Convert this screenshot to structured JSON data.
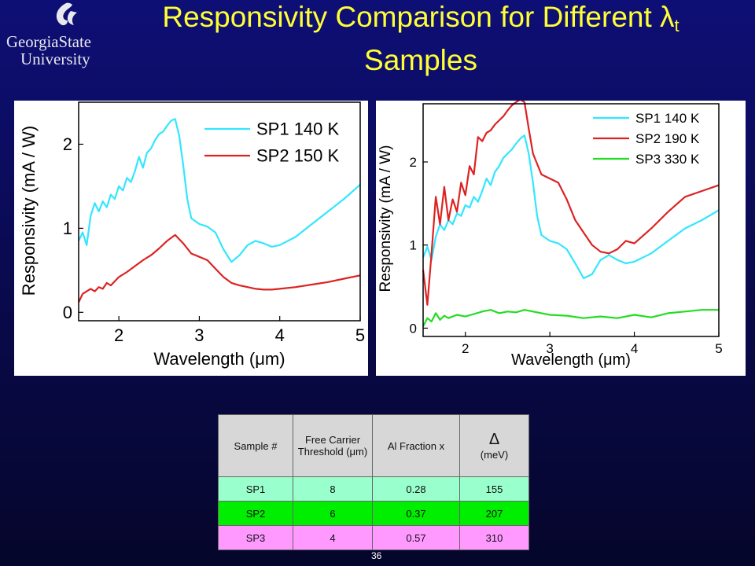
{
  "slide": {
    "title_main": "Responsivity Comparison for Different λ",
    "title_sub": "t",
    "title_line2": "Samples",
    "logo_line1": "GeorgiaState",
    "logo_line2": "University",
    "page_number": "36"
  },
  "chart_data": [
    {
      "type": "line",
      "xlabel": "Wavelength (μm)",
      "ylabel": "Responsivity (mA / W)",
      "xlim": [
        1.5,
        5.0
      ],
      "ylim": [
        -0.1,
        2.5
      ],
      "xticks": [
        2,
        3,
        4,
        5
      ],
      "yticks": [
        0,
        1,
        2
      ],
      "legend_position": "top-right",
      "series": [
        {
          "name": "SP1 140 K",
          "color": "#33e6ff",
          "x": [
            1.5,
            1.55,
            1.6,
            1.65,
            1.7,
            1.75,
            1.8,
            1.85,
            1.9,
            1.95,
            2.0,
            2.05,
            2.1,
            2.15,
            2.2,
            2.25,
            2.3,
            2.35,
            2.4,
            2.45,
            2.5,
            2.55,
            2.6,
            2.65,
            2.7,
            2.75,
            2.8,
            2.85,
            2.9,
            3.0,
            3.1,
            3.2,
            3.3,
            3.4,
            3.5,
            3.6,
            3.7,
            3.8,
            3.9,
            4.0,
            4.2,
            4.4,
            4.6,
            4.8,
            5.0
          ],
          "y": [
            0.85,
            0.95,
            0.8,
            1.15,
            1.3,
            1.2,
            1.32,
            1.25,
            1.4,
            1.35,
            1.5,
            1.45,
            1.6,
            1.55,
            1.68,
            1.85,
            1.72,
            1.9,
            1.95,
            2.05,
            2.12,
            2.15,
            2.22,
            2.28,
            2.3,
            2.1,
            1.75,
            1.35,
            1.12,
            1.05,
            1.02,
            0.95,
            0.75,
            0.6,
            0.68,
            0.8,
            0.85,
            0.82,
            0.78,
            0.8,
            0.9,
            1.05,
            1.2,
            1.35,
            1.52
          ]
        },
        {
          "name": "SP2 150 K",
          "color": "#dd2222",
          "x": [
            1.5,
            1.55,
            1.6,
            1.65,
            1.7,
            1.75,
            1.8,
            1.85,
            1.9,
            2.0,
            2.1,
            2.2,
            2.3,
            2.4,
            2.5,
            2.6,
            2.7,
            2.8,
            2.9,
            3.0,
            3.1,
            3.2,
            3.3,
            3.4,
            3.5,
            3.6,
            3.7,
            3.8,
            3.9,
            4.0,
            4.2,
            4.4,
            4.6,
            4.8,
            5.0
          ],
          "y": [
            0.12,
            0.22,
            0.25,
            0.28,
            0.25,
            0.3,
            0.28,
            0.35,
            0.32,
            0.42,
            0.48,
            0.55,
            0.62,
            0.68,
            0.76,
            0.85,
            0.92,
            0.82,
            0.7,
            0.66,
            0.62,
            0.52,
            0.42,
            0.35,
            0.32,
            0.3,
            0.28,
            0.27,
            0.27,
            0.28,
            0.3,
            0.33,
            0.36,
            0.4,
            0.44
          ]
        }
      ]
    },
    {
      "type": "line",
      "xlabel": "Wavelength (μm)",
      "ylabel": "Responsivity (mA / W)",
      "xlim": [
        1.5,
        5.0
      ],
      "ylim": [
        -0.1,
        2.7
      ],
      "xticks": [
        2,
        3,
        4,
        5
      ],
      "yticks": [
        0,
        1,
        2
      ],
      "legend_position": "top-right",
      "series": [
        {
          "name": "SP1 140 K",
          "color": "#33e6ff",
          "x": [
            1.5,
            1.55,
            1.6,
            1.65,
            1.7,
            1.75,
            1.8,
            1.85,
            1.9,
            1.95,
            2.0,
            2.05,
            2.1,
            2.15,
            2.2,
            2.25,
            2.3,
            2.35,
            2.4,
            2.45,
            2.5,
            2.55,
            2.6,
            2.65,
            2.7,
            2.75,
            2.8,
            2.85,
            2.9,
            3.0,
            3.1,
            3.2,
            3.3,
            3.4,
            3.5,
            3.6,
            3.7,
            3.8,
            3.9,
            4.0,
            4.2,
            4.4,
            4.6,
            4.8,
            5.0
          ],
          "y": [
            0.85,
            0.98,
            0.82,
            1.1,
            1.25,
            1.18,
            1.3,
            1.25,
            1.38,
            1.35,
            1.48,
            1.45,
            1.58,
            1.52,
            1.65,
            1.8,
            1.72,
            1.88,
            1.95,
            2.05,
            2.1,
            2.15,
            2.22,
            2.28,
            2.32,
            2.1,
            1.75,
            1.35,
            1.12,
            1.05,
            1.02,
            0.95,
            0.78,
            0.6,
            0.65,
            0.82,
            0.88,
            0.82,
            0.78,
            0.8,
            0.9,
            1.05,
            1.2,
            1.3,
            1.42
          ]
        },
        {
          "name": "SP2 190 K",
          "color": "#dd2222",
          "x": [
            1.5,
            1.55,
            1.6,
            1.65,
            1.7,
            1.75,
            1.8,
            1.85,
            1.9,
            1.95,
            2.0,
            2.05,
            2.1,
            2.15,
            2.2,
            2.25,
            2.3,
            2.35,
            2.4,
            2.45,
            2.5,
            2.55,
            2.6,
            2.65,
            2.7,
            2.75,
            2.8,
            2.9,
            3.0,
            3.1,
            3.2,
            3.3,
            3.4,
            3.5,
            3.6,
            3.7,
            3.8,
            3.9,
            4.0,
            4.2,
            4.4,
            4.6,
            4.8,
            5.0
          ],
          "y": [
            0.7,
            0.28,
            0.9,
            1.58,
            1.25,
            1.7,
            1.3,
            1.55,
            1.4,
            1.75,
            1.6,
            1.95,
            1.85,
            2.3,
            2.25,
            2.35,
            2.38,
            2.45,
            2.5,
            2.55,
            2.62,
            2.68,
            2.72,
            2.75,
            2.72,
            2.4,
            2.1,
            1.85,
            1.8,
            1.75,
            1.55,
            1.3,
            1.15,
            1.0,
            0.92,
            0.9,
            0.95,
            1.05,
            1.02,
            1.2,
            1.4,
            1.58,
            1.65,
            1.72
          ]
        },
        {
          "name": "SP3 330 K",
          "color": "#22dd22",
          "x": [
            1.5,
            1.55,
            1.6,
            1.65,
            1.7,
            1.75,
            1.8,
            1.9,
            2.0,
            2.1,
            2.2,
            2.3,
            2.4,
            2.5,
            2.6,
            2.7,
            2.8,
            2.9,
            3.0,
            3.2,
            3.4,
            3.6,
            3.8,
            4.0,
            4.2,
            4.4,
            4.6,
            4.8,
            5.0
          ],
          "y": [
            0.02,
            0.12,
            0.08,
            0.18,
            0.1,
            0.15,
            0.12,
            0.16,
            0.14,
            0.17,
            0.2,
            0.22,
            0.18,
            0.2,
            0.19,
            0.22,
            0.2,
            0.18,
            0.16,
            0.15,
            0.12,
            0.14,
            0.12,
            0.16,
            0.13,
            0.18,
            0.2,
            0.22,
            0.22
          ]
        }
      ]
    }
  ],
  "table": {
    "headers": {
      "sample": "Sample #",
      "threshold": "Free Carrier Threshold (μm)",
      "al_fraction": "Al Fraction x",
      "delta_symbol": "Δ",
      "delta_unit": "(meV)"
    },
    "rows": [
      {
        "sample": "SP1",
        "threshold": "8",
        "al": "0.28",
        "delta": "155",
        "color": "#99ffcc"
      },
      {
        "sample": "SP2",
        "threshold": "6",
        "al": "0.37",
        "delta": "207",
        "color": "#00ee00"
      },
      {
        "sample": "SP3",
        "threshold": "4",
        "al": "0.57",
        "delta": "310",
        "color": "#ff99ff"
      }
    ]
  }
}
